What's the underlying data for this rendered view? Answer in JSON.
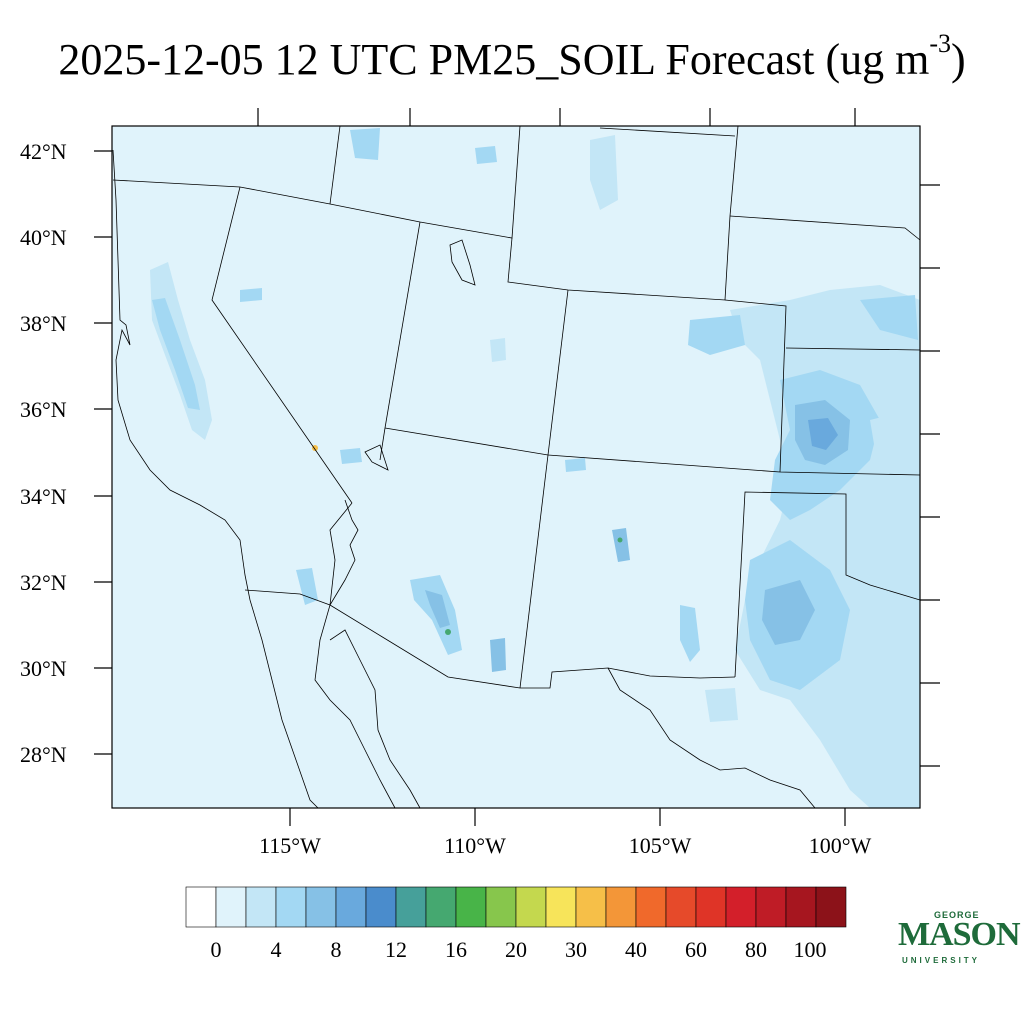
{
  "title": {
    "main": "2025-12-05 12 UTC PM25_SOIL Forecast (ug m",
    "sup": "-3",
    "close": ")"
  },
  "lat_labels": [
    "42°N",
    "40°N",
    "38°N",
    "36°N",
    "34°N",
    "32°N",
    "30°N",
    "28°N"
  ],
  "lon_labels": [
    "115°W",
    "110°W",
    "105°W",
    "100°W"
  ],
  "colorbar": {
    "colors": [
      "#ffffff",
      "#e0f3fb",
      "#c3e6f6",
      "#a3d8f3",
      "#86c1e6",
      "#69a9dd",
      "#4a8ccc",
      "#46a09a",
      "#45a870",
      "#48b448",
      "#87c64c",
      "#c4d84e",
      "#f7e45a",
      "#f6bf48",
      "#f39638",
      "#f0692b",
      "#e64a2a",
      "#df3427",
      "#d31f2a",
      "#bf1c26",
      "#a6161f",
      "#8c1219"
    ],
    "labels": [
      "0",
      "4",
      "8",
      "12",
      "16",
      "20",
      "30",
      "40",
      "60",
      "80",
      "100"
    ]
  },
  "logo": {
    "top": "GEORGE",
    "main": "MASON",
    "bottom": "UNIVERSITY"
  },
  "colors": {
    "background_fill": "#e0f3fb",
    "light_blue": "#c3e6f6",
    "mid_blue": "#a3d8f3",
    "blue": "#86c1e6",
    "dark_blue": "#69a9dd"
  }
}
